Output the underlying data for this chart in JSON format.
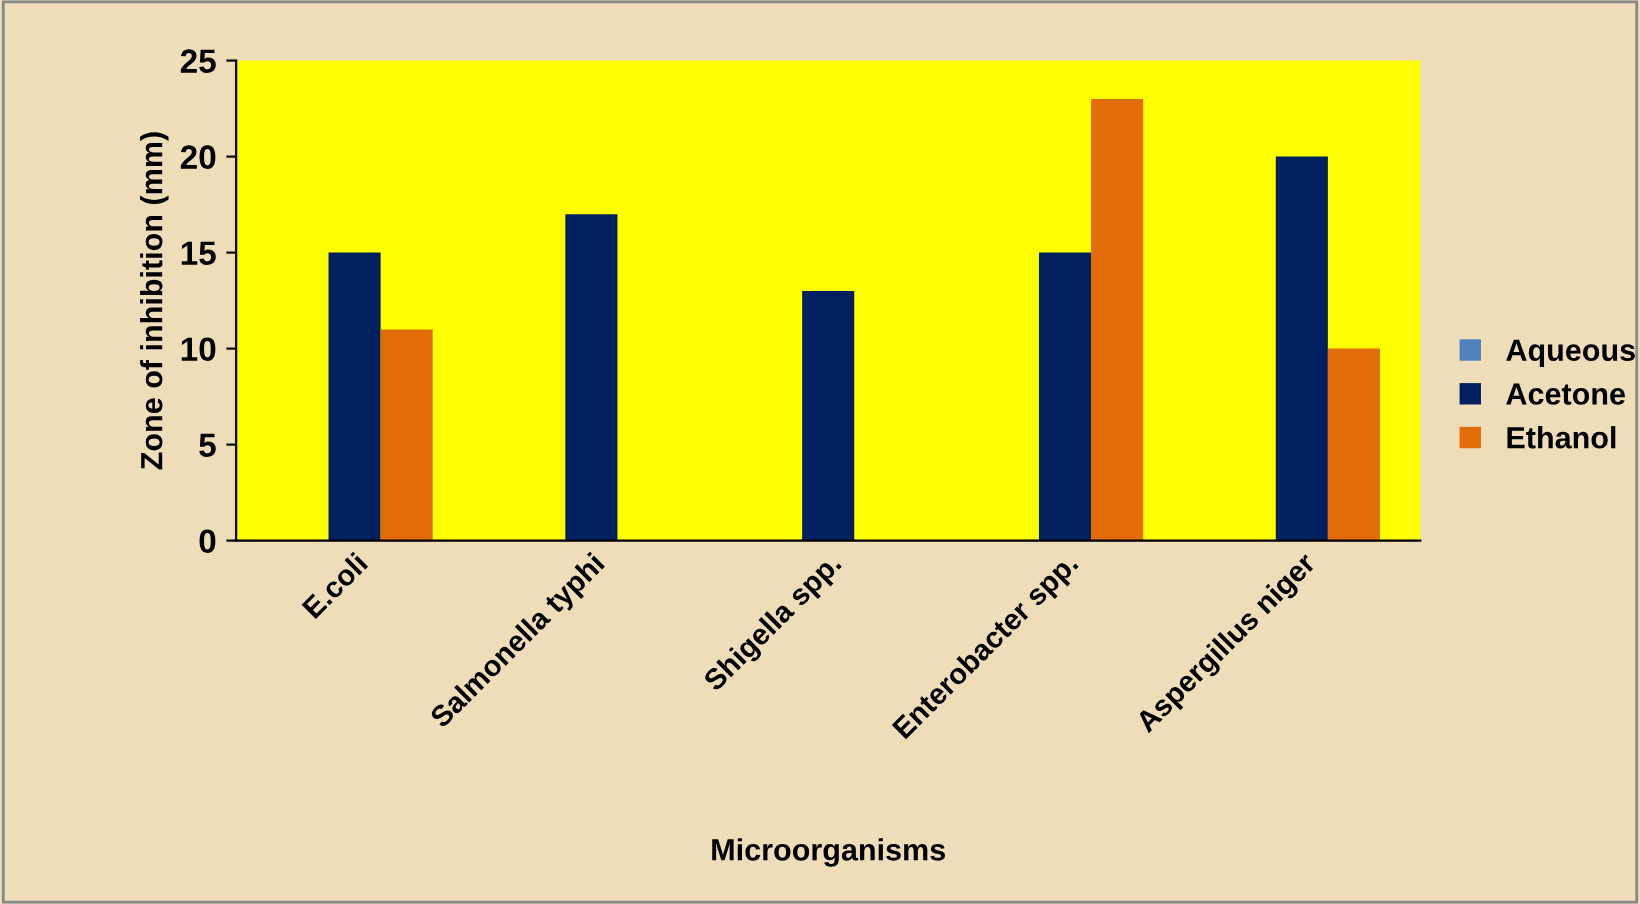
{
  "chart_data": {
    "type": "bar",
    "xlabel": "Microorganisms",
    "ylabel": "Zone of inhibition (mm)",
    "categories": [
      "E.coli",
      "Salmonella typhi",
      "Shigella spp.",
      "Enterobacter spp.",
      "Aspergillus niger"
    ],
    "series": [
      {
        "name": "Aqueous",
        "color": "#4f81bd",
        "values": [
          0,
          0,
          0,
          0,
          0
        ]
      },
      {
        "name": "Acetone",
        "color": "#002060",
        "values": [
          15,
          17,
          13,
          15,
          20
        ]
      },
      {
        "name": "Ethanol",
        "color": "#e36c09",
        "values": [
          11,
          0,
          0,
          23,
          10
        ]
      }
    ],
    "ylim": [
      0,
      25
    ],
    "yticks": [
      0,
      5,
      10,
      15,
      20,
      25
    ],
    "grid": false,
    "legend": "right"
  }
}
